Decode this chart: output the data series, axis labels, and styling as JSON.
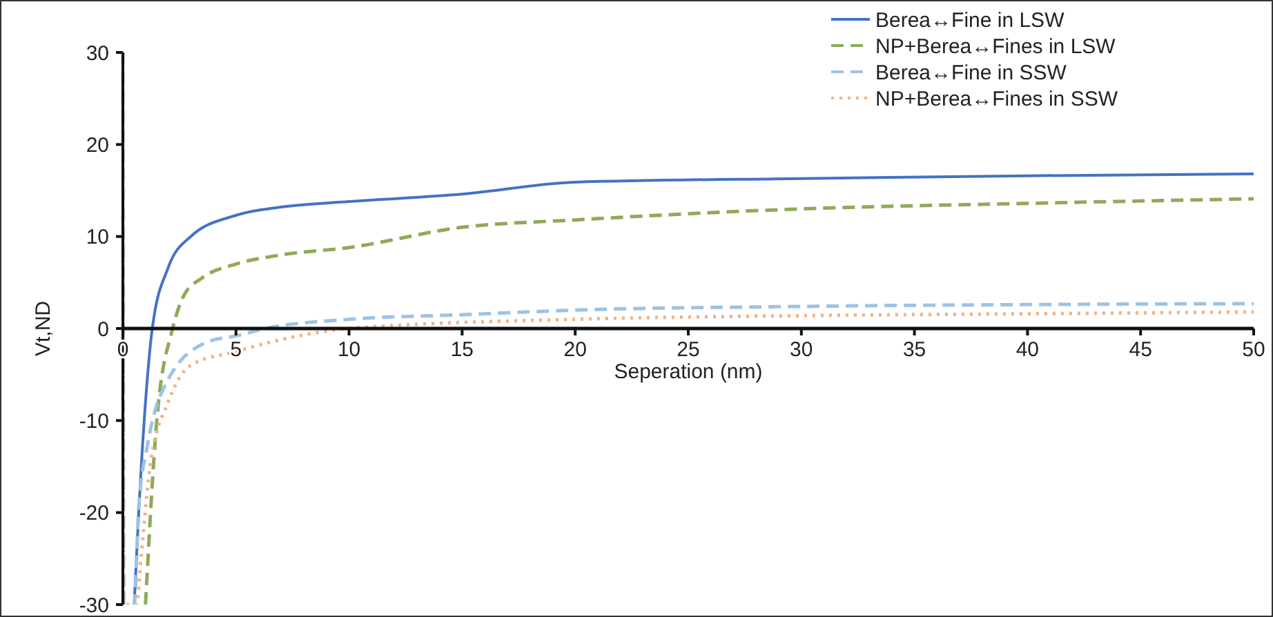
{
  "chart_data": {
    "type": "line",
    "xlabel": "Seperation  (nm)",
    "ylabel": "Vt,ND",
    "xlim": [
      0,
      50
    ],
    "ylim": [
      -30,
      30
    ],
    "xticks": [
      0,
      5,
      10,
      15,
      20,
      25,
      30,
      35,
      40,
      45,
      50
    ],
    "yticks": [
      -30,
      -20,
      -10,
      0,
      10,
      20,
      30
    ],
    "legend": "top right",
    "grid": false,
    "series": [
      {
        "name": "Berea↔Fine in LSW",
        "color": "#4472c4",
        "line_style": "solid",
        "x": [
          0.5,
          0.7,
          1,
          1.3,
          2,
          3,
          5,
          7,
          10,
          15,
          20,
          30,
          40,
          50
        ],
        "values": [
          -30,
          -20,
          -8,
          0,
          6.6,
          10,
          12.3,
          13.2,
          13.8,
          14.6,
          15.9,
          16.3,
          16.6,
          16.8
        ]
      },
      {
        "name": "NP+Berea↔Fines in LSW",
        "color": "#8faa5a",
        "line_style": "dashed",
        "x": [
          1,
          1.5,
          2.2,
          2.7,
          3.5,
          5,
          7,
          10,
          15,
          20,
          30,
          40,
          50
        ],
        "values": [
          -30,
          -10,
          0,
          3.6,
          5.5,
          7,
          8,
          8.8,
          11,
          11.8,
          13,
          13.6,
          14.1
        ]
      },
      {
        "name": "Berea↔Fine in SSW",
        "color": "#9dc3e6",
        "line_style": "dashed",
        "x": [
          0,
          0.05,
          0.5,
          0.7,
          1.1,
          1.9,
          3.7,
          5,
          6.3,
          10,
          15,
          20,
          30,
          40,
          50
        ],
        "values": [
          30,
          -30,
          -30,
          -19.5,
          -12.5,
          -6,
          -1.5,
          -0.8,
          0,
          1,
          1.5,
          2,
          2.4,
          2.6,
          2.7
        ]
      },
      {
        "name": "NP+Berea↔Fines in SSW",
        "color": "#f4b183",
        "line_style": "dotted",
        "x": [
          0,
          0.05,
          0.6,
          0.8,
          1.2,
          2,
          3,
          5,
          7,
          10,
          20,
          30,
          40,
          50
        ],
        "values": [
          12,
          -30,
          -30,
          -25,
          -15,
          -8,
          -4,
          -2.5,
          -1.2,
          0,
          1,
          1.4,
          1.6,
          1.8
        ]
      }
    ]
  }
}
